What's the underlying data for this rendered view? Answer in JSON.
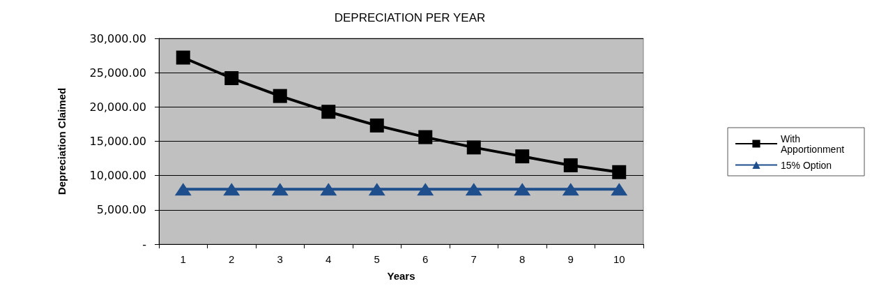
{
  "chart_data": {
    "type": "line",
    "title": "DEPRECIATION PER YEAR",
    "xlabel": "Years",
    "ylabel": "Depreciation Claimed",
    "categories": [
      "1",
      "2",
      "3",
      "4",
      "5",
      "6",
      "7",
      "8",
      "9",
      "10"
    ],
    "series": [
      {
        "name": "With Apportionment",
        "color": "#000000",
        "marker": "square",
        "values": [
          27200,
          24200,
          21600,
          19300,
          17300,
          15600,
          14100,
          12800,
          11500,
          10500
        ]
      },
      {
        "name": "15% Option",
        "color": "#1f4e8c",
        "marker": "triangle",
        "values": [
          8000,
          8000,
          8000,
          8000,
          8000,
          8000,
          8000,
          8000,
          8000,
          8000
        ]
      }
    ],
    "ylim": [
      0,
      30000
    ],
    "yticks": [
      {
        "value": 0,
        "label": "-"
      },
      {
        "value": 5000,
        "label": "5,000.00"
      },
      {
        "value": 10000,
        "label": "10,000.00"
      },
      {
        "value": 15000,
        "label": "15,000.00"
      },
      {
        "value": 20000,
        "label": "20,000.00"
      },
      {
        "value": 25000,
        "label": "25,000.00"
      },
      {
        "value": 30000,
        "label": "30,000.00"
      }
    ],
    "grid": "y",
    "legend": "right"
  }
}
